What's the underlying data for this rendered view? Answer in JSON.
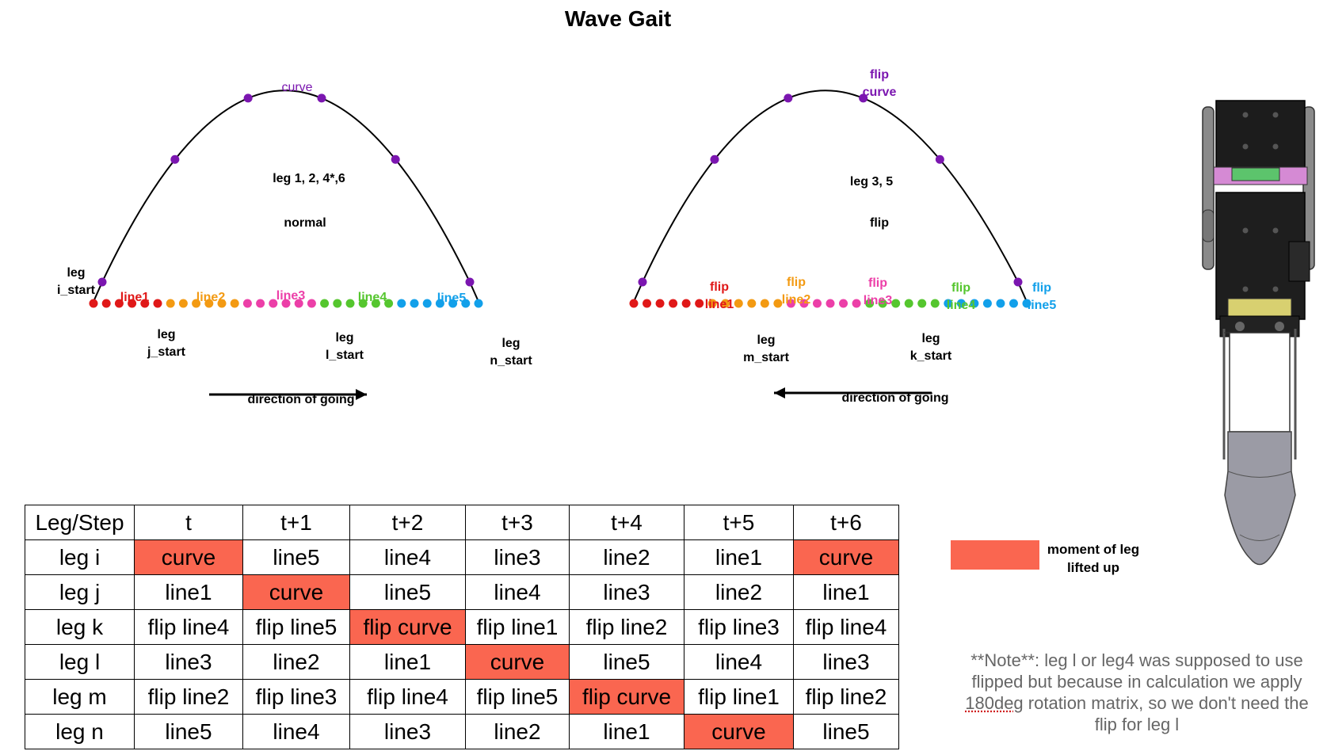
{
  "title": "Wave Gait",
  "colors": {
    "curve": "#7b16b0",
    "line1": "#e01818",
    "line2": "#f39a12",
    "line3": "#ec3fa8",
    "line4": "#55c62e",
    "line5": "#12a0ea",
    "highlight": "#fa6650"
  },
  "left_diagram": {
    "curve_label": "curve",
    "legs_label": "leg 1, 2, 4*,6",
    "mode_label": "normal",
    "segment_labels": [
      "line1",
      "line2",
      "line3",
      "line4",
      "line5"
    ],
    "start_labels": {
      "i": [
        "leg",
        "i_start"
      ],
      "j": [
        "leg",
        "j_start"
      ],
      "l": [
        "leg",
        "l_start"
      ],
      "n": [
        "leg",
        "n_start"
      ]
    },
    "direction_label": "direction of going",
    "direction": "right"
  },
  "right_diagram": {
    "curve_label": [
      "flip",
      "curve"
    ],
    "legs_label": "leg 3, 5",
    "mode_label": "flip",
    "segment_labels": [
      [
        "flip",
        "line1"
      ],
      [
        "flip",
        "line2"
      ],
      [
        "flip",
        "line3"
      ],
      [
        "flip",
        "line4"
      ],
      [
        "flip",
        "line5"
      ]
    ],
    "start_labels": {
      "m": [
        "leg",
        "m_start"
      ],
      "k": [
        "leg",
        "k_start"
      ]
    },
    "direction_label": "direction of going",
    "direction": "left"
  },
  "table": {
    "headers": [
      "Leg/Step",
      "t",
      "t+1",
      "t+2",
      "t+3",
      "t+4",
      "t+5",
      "t+6"
    ],
    "rows": [
      {
        "leg": "leg i",
        "cells": [
          "curve",
          "line5",
          "line4",
          "line3",
          "line2",
          "line1",
          "curve"
        ],
        "lifted": [
          0,
          6
        ]
      },
      {
        "leg": "leg j",
        "cells": [
          "line1",
          "curve",
          "line5",
          "line4",
          "line3",
          "line2",
          "line1"
        ],
        "lifted": [
          1
        ]
      },
      {
        "leg": "leg k",
        "cells": [
          "flip line4",
          "flip line5",
          "flip curve",
          "flip line1",
          "flip line2",
          "flip line3",
          "flip line4"
        ],
        "lifted": [
          2
        ]
      },
      {
        "leg": "leg l",
        "cells": [
          "line3",
          "line2",
          "line1",
          "curve",
          "line5",
          "line4",
          "line3"
        ],
        "lifted": [
          3
        ]
      },
      {
        "leg": "leg m",
        "cells": [
          "flip line2",
          "flip line3",
          "flip line4",
          "flip line5",
          "flip curve",
          "flip line1",
          "flip line2"
        ],
        "lifted": [
          4
        ]
      },
      {
        "leg": "leg n",
        "cells": [
          "line5",
          "line4",
          "line3",
          "line2",
          "line1",
          "curve",
          "line5"
        ],
        "lifted": [
          5
        ]
      }
    ]
  },
  "legend": {
    "text": [
      "moment of leg",
      "lifted up"
    ]
  },
  "note": {
    "line1": "**Note**: leg l or leg4 was supposed to use",
    "line2": "flipped but because in calculation we apply",
    "line3_underlined": "180deg",
    "line3_rest": " rotation matrix, so we don't need the",
    "line4": "flip for leg l"
  }
}
